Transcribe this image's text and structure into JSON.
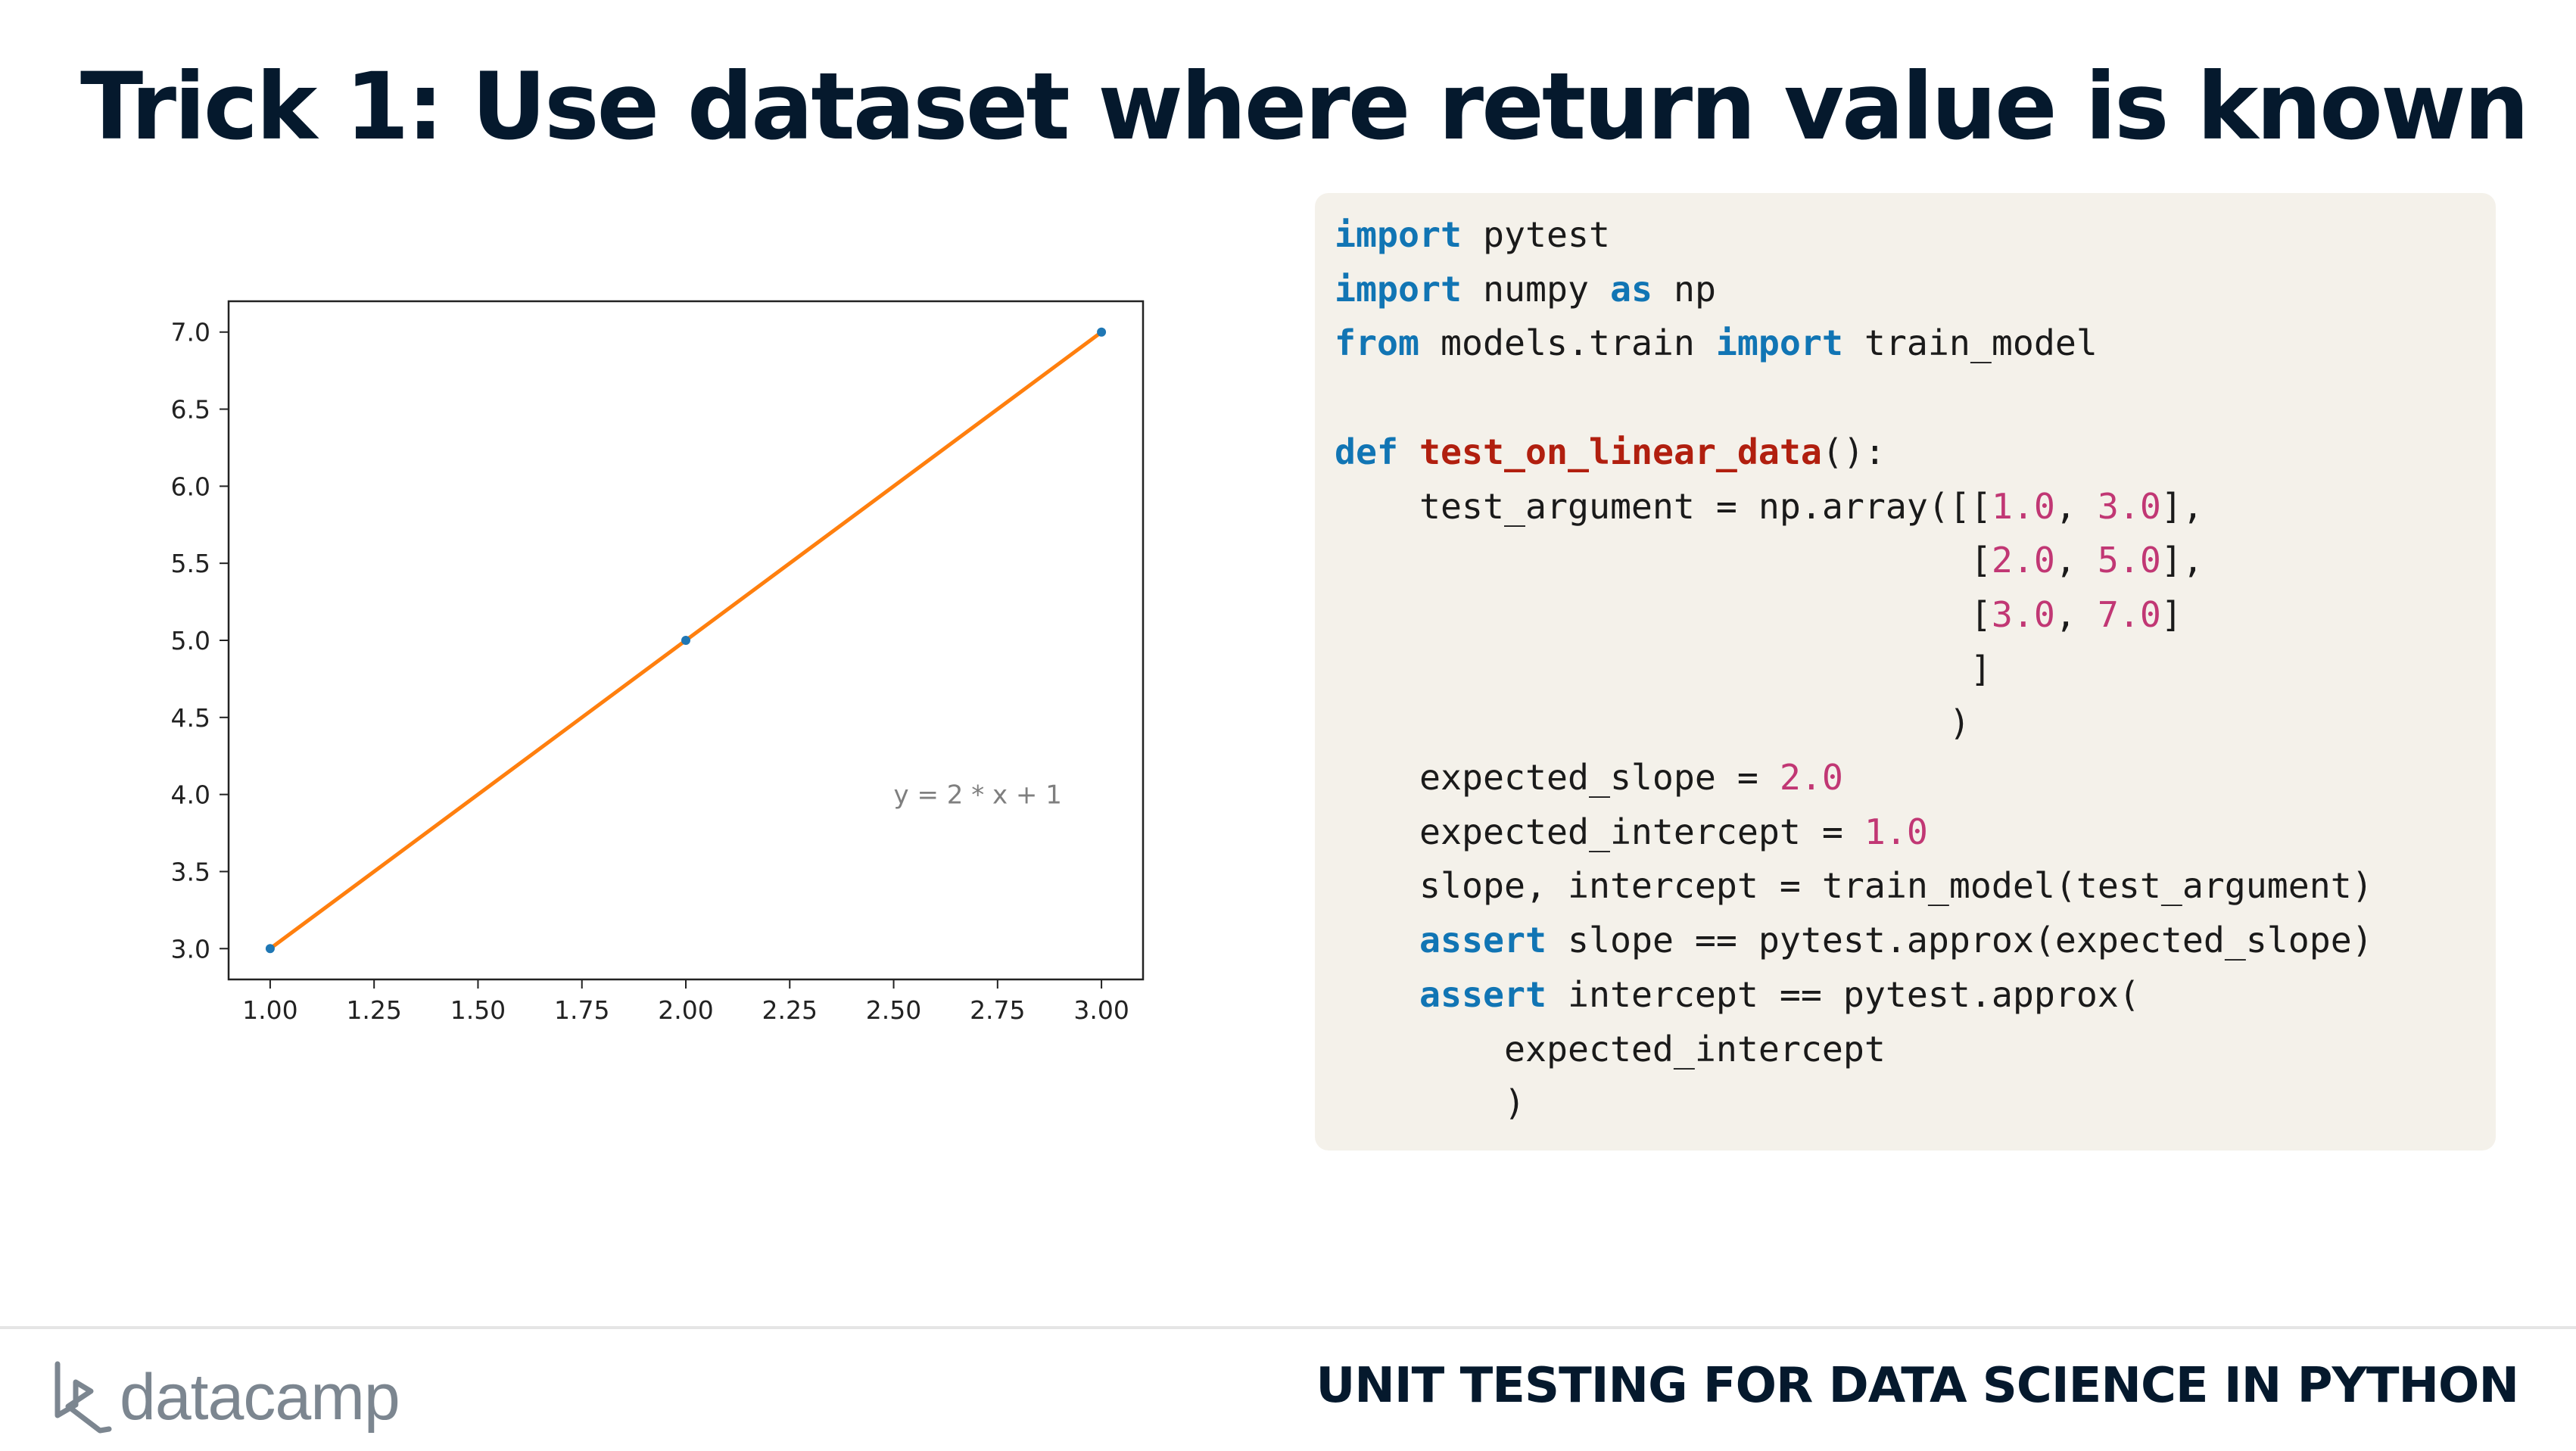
{
  "slide": {
    "title": "Trick 1: Use dataset where return value is known"
  },
  "chart_data": {
    "type": "line",
    "x": [
      1.0,
      2.0,
      3.0
    ],
    "series": [
      {
        "values": [
          3.0,
          5.0,
          7.0
        ],
        "color": "#ff7f0e"
      }
    ],
    "points": {
      "x": [
        1.0,
        2.0,
        3.0
      ],
      "y": [
        3.0,
        5.0,
        7.0
      ],
      "color": "#1f77b4"
    },
    "xlim": [
      0.9,
      3.1
    ],
    "ylim": [
      2.8,
      7.2
    ],
    "xticks": [
      "1.00",
      "1.25",
      "1.50",
      "1.75",
      "2.00",
      "2.25",
      "2.50",
      "2.75",
      "3.00"
    ],
    "yticks": [
      "3.0",
      "3.5",
      "4.0",
      "4.5",
      "5.0",
      "5.5",
      "6.0",
      "6.5",
      "7.0"
    ],
    "annotation": {
      "text": "y = 2 * x + 1",
      "x": 2.5,
      "y": 4.0
    },
    "grid": false
  },
  "code": {
    "lines": [
      [
        {
          "t": "import",
          "c": "kw"
        },
        {
          "t": " pytest"
        }
      ],
      [
        {
          "t": "import",
          "c": "kw"
        },
        {
          "t": " numpy "
        },
        {
          "t": "as",
          "c": "kw"
        },
        {
          "t": " np"
        }
      ],
      [
        {
          "t": "from",
          "c": "kw"
        },
        {
          "t": " models.train "
        },
        {
          "t": "import",
          "c": "kw"
        },
        {
          "t": " train_model"
        }
      ],
      [],
      [
        {
          "t": "def",
          "c": "kw"
        },
        {
          "t": " "
        },
        {
          "t": "test_on_linear_data",
          "c": "fn"
        },
        {
          "t": "():"
        }
      ],
      [
        {
          "t": "    test_argument = np.array([["
        },
        {
          "t": "1.0",
          "c": "num"
        },
        {
          "t": ", "
        },
        {
          "t": "3.0",
          "c": "num"
        },
        {
          "t": "],"
        }
      ],
      [
        {
          "t": "                              ["
        },
        {
          "t": "2.0",
          "c": "num"
        },
        {
          "t": ", "
        },
        {
          "t": "5.0",
          "c": "num"
        },
        {
          "t": "],"
        }
      ],
      [
        {
          "t": "                              ["
        },
        {
          "t": "3.0",
          "c": "num"
        },
        {
          "t": ", "
        },
        {
          "t": "7.0",
          "c": "num"
        },
        {
          "t": "]"
        }
      ],
      [
        {
          "t": "                              ]"
        }
      ],
      [
        {
          "t": "                             )"
        }
      ],
      [
        {
          "t": "    expected_slope = "
        },
        {
          "t": "2.0",
          "c": "num"
        }
      ],
      [
        {
          "t": "    expected_intercept = "
        },
        {
          "t": "1.0",
          "c": "num"
        }
      ],
      [
        {
          "t": "    slope, intercept = train_model(test_argument)"
        }
      ],
      [
        {
          "t": "    "
        },
        {
          "t": "assert",
          "c": "kw"
        },
        {
          "t": " slope == pytest.approx(expected_slope)"
        }
      ],
      [
        {
          "t": "    "
        },
        {
          "t": "assert",
          "c": "kw"
        },
        {
          "t": " intercept == pytest.approx("
        }
      ],
      [
        {
          "t": "        expected_intercept"
        }
      ],
      [
        {
          "t": "        )"
        }
      ]
    ]
  },
  "footer": {
    "brand": "datacamp",
    "course": "UNIT TESTING FOR DATA SCIENCE IN PYTHON"
  },
  "colors": {
    "title": "#05192d",
    "keyword": "#1175b4",
    "function_name": "#b11f0f",
    "number": "#c13774",
    "code_background": "#f4f1ea",
    "logo": "#7c8690"
  }
}
